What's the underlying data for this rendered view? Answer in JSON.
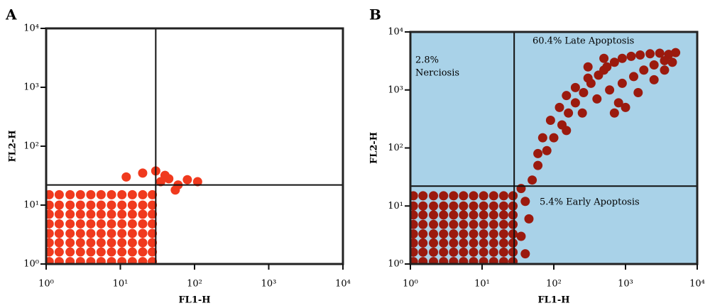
{
  "chart_data": [
    {
      "type": "scatter",
      "panel_label": "A",
      "xlabel": "FL1-H",
      "ylabel": "FL2-H",
      "log_x": true,
      "log_y": true,
      "background": "#ffffff",
      "color": "#f03a1e",
      "xlim": [
        1,
        10000
      ],
      "ylim": [
        1,
        10000
      ],
      "xticks": [
        {
          "value": 1,
          "label": "10⁰"
        },
        {
          "value": 10,
          "label": "10¹"
        },
        {
          "value": 100,
          "label": "10²"
        },
        {
          "value": 1000,
          "label": "10³"
        },
        {
          "value": 10000,
          "label": "10⁴"
        }
      ],
      "yticks": [
        {
          "value": 1,
          "label": "10⁰"
        },
        {
          "value": 10,
          "label": "10¹"
        },
        {
          "value": 100,
          "label": "10²"
        },
        {
          "value": 1000,
          "label": "10³"
        },
        {
          "value": 10000,
          "label": "10⁴"
        }
      ],
      "gate_x": 30,
      "gate_y": 22,
      "annotations": [],
      "x": [
        1.1,
        1.5,
        2.1,
        2.9,
        4,
        5.5,
        7.6,
        10.5,
        14.5,
        20,
        27,
        1.1,
        1.5,
        2.1,
        2.9,
        4,
        5.5,
        7.6,
        10.5,
        14.5,
        20,
        27,
        1.1,
        1.5,
        2.1,
        2.9,
        4,
        5.5,
        7.6,
        10.5,
        14.5,
        20,
        27,
        1.1,
        1.5,
        2.1,
        2.9,
        4,
        5.5,
        7.6,
        10.5,
        14.5,
        20,
        27,
        1.1,
        1.5,
        2.1,
        2.9,
        4,
        5.5,
        7.6,
        10.5,
        14.5,
        20,
        27,
        1.1,
        1.5,
        2.1,
        2.9,
        4,
        5.5,
        7.6,
        10.5,
        14.5,
        20,
        27,
        1.1,
        1.5,
        2.1,
        2.9,
        4,
        5.5,
        7.6,
        10.5,
        14.5,
        20,
        27,
        1.1,
        1.5,
        2.1,
        2.9,
        4,
        5.5,
        7.6,
        10.5,
        14.5,
        20,
        27,
        35,
        45,
        60,
        80,
        40,
        30,
        110,
        20,
        12,
        55
      ],
      "values": [
        1.1,
        1.1,
        1.1,
        1.1,
        1.1,
        1.1,
        1.1,
        1.1,
        1.1,
        1.1,
        1.1,
        1.6,
        1.6,
        1.6,
        1.6,
        1.6,
        1.6,
        1.6,
        1.6,
        1.6,
        1.6,
        1.6,
        2.3,
        2.3,
        2.3,
        2.3,
        2.3,
        2.3,
        2.3,
        2.3,
        2.3,
        2.3,
        2.3,
        3.3,
        3.3,
        3.3,
        3.3,
        3.3,
        3.3,
        3.3,
        3.3,
        3.3,
        3.3,
        3.3,
        4.8,
        4.8,
        4.8,
        4.8,
        4.8,
        4.8,
        4.8,
        4.8,
        4.8,
        4.8,
        4.8,
        7,
        7,
        7,
        7,
        7,
        7,
        7,
        7,
        7,
        7,
        7,
        10,
        10,
        10,
        10,
        10,
        10,
        10,
        10,
        10,
        10,
        10,
        15,
        15,
        15,
        15,
        15,
        15,
        15,
        15,
        15,
        15,
        15,
        25,
        28,
        22,
        27,
        32,
        38,
        25,
        35,
        30,
        18
      ]
    },
    {
      "type": "scatter",
      "panel_label": "B",
      "xlabel": "FL1-H",
      "ylabel": "FL2-H",
      "log_x": true,
      "log_y": true,
      "background": "#a9d2e8",
      "color": "#9b1a0e",
      "xlim": [
        1,
        10000
      ],
      "ylim": [
        1,
        10000
      ],
      "xticks": [
        {
          "value": 1,
          "label": "10⁰"
        },
        {
          "value": 10,
          "label": "10¹"
        },
        {
          "value": 100,
          "label": "10²"
        },
        {
          "value": 1000,
          "label": "10³"
        },
        {
          "value": 10000,
          "label": "10⁴"
        }
      ],
      "yticks": [
        {
          "value": 1,
          "label": "10⁰"
        },
        {
          "value": 10,
          "label": "10¹"
        },
        {
          "value": 100,
          "label": "10²"
        },
        {
          "value": 1000,
          "label": "10³"
        },
        {
          "value": 10000,
          "label": "10⁴"
        }
      ],
      "gate_x": 28,
      "gate_y": 22,
      "annotations": [
        "2.8%",
        "Nerciosis",
        "60.4% Late Apoptosis",
        "5.4% Early Apoptosis"
      ],
      "x": [
        1.1,
        1.5,
        2.1,
        2.9,
        4,
        5.5,
        7.6,
        10.5,
        14.5,
        20,
        27,
        1.1,
        1.5,
        2.1,
        2.9,
        4,
        5.5,
        7.6,
        10.5,
        14.5,
        20,
        27,
        1.1,
        1.5,
        2.1,
        2.9,
        4,
        5.5,
        7.6,
        10.5,
        14.5,
        20,
        27,
        1.1,
        1.5,
        2.1,
        2.9,
        4,
        5.5,
        7.6,
        10.5,
        14.5,
        20,
        27,
        1.1,
        1.5,
        2.1,
        2.9,
        4,
        5.5,
        7.6,
        10.5,
        14.5,
        20,
        27,
        1.1,
        1.5,
        2.1,
        2.9,
        4,
        5.5,
        7.6,
        10.5,
        14.5,
        20,
        27,
        1.1,
        1.5,
        2.1,
        2.9,
        4,
        5.5,
        7.6,
        10.5,
        14.5,
        20,
        27,
        1.1,
        1.5,
        2.1,
        2.9,
        4,
        5.5,
        7.6,
        10.5,
        14.5,
        20,
        27,
        35,
        40,
        45,
        35,
        40,
        50,
        60,
        80,
        100,
        130,
        160,
        200,
        260,
        330,
        420,
        550,
        700,
        900,
        1200,
        1600,
        2200,
        3000,
        4000,
        5000,
        150,
        250,
        400,
        600,
        900,
        1300,
        1800,
        2500,
        3500,
        120,
        200,
        300,
        500,
        800,
        1500,
        2500,
        3500,
        90,
        70,
        60,
        1000,
        700,
        4500,
        500,
        300,
        150
      ],
      "values": [
        1.1,
        1.1,
        1.1,
        1.1,
        1.1,
        1.1,
        1.1,
        1.1,
        1.1,
        1.1,
        1.1,
        1.6,
        1.6,
        1.6,
        1.6,
        1.6,
        1.6,
        1.6,
        1.6,
        1.6,
        1.6,
        1.6,
        2.3,
        2.3,
        2.3,
        2.3,
        2.3,
        2.3,
        2.3,
        2.3,
        2.3,
        2.3,
        2.3,
        3.3,
        3.3,
        3.3,
        3.3,
        3.3,
        3.3,
        3.3,
        3.3,
        3.3,
        3.3,
        3.3,
        4.8,
        4.8,
        4.8,
        4.8,
        4.8,
        4.8,
        4.8,
        4.8,
        4.8,
        4.8,
        4.8,
        7,
        7,
        7,
        7,
        7,
        7,
        7,
        7,
        7,
        7,
        7,
        10,
        10,
        10,
        10,
        10,
        10,
        10,
        10,
        10,
        10,
        10,
        15,
        15,
        15,
        15,
        15,
        15,
        15,
        15,
        15,
        15,
        15,
        20,
        12,
        6,
        3,
        1.5,
        28,
        50,
        90,
        150,
        250,
        400,
        600,
        900,
        1300,
        1800,
        2500,
        3000,
        3500,
        3800,
        4000,
        4200,
        4300,
        4100,
        4400,
        200,
        400,
        700,
        1000,
        1300,
        1700,
        2200,
        2700,
        3200,
        500,
        1100,
        1600,
        2200,
        600,
        900,
        1500,
        2200,
        300,
        150,
        80,
        500,
        400,
        3000,
        3500,
        2500,
        800
      ]
    }
  ]
}
